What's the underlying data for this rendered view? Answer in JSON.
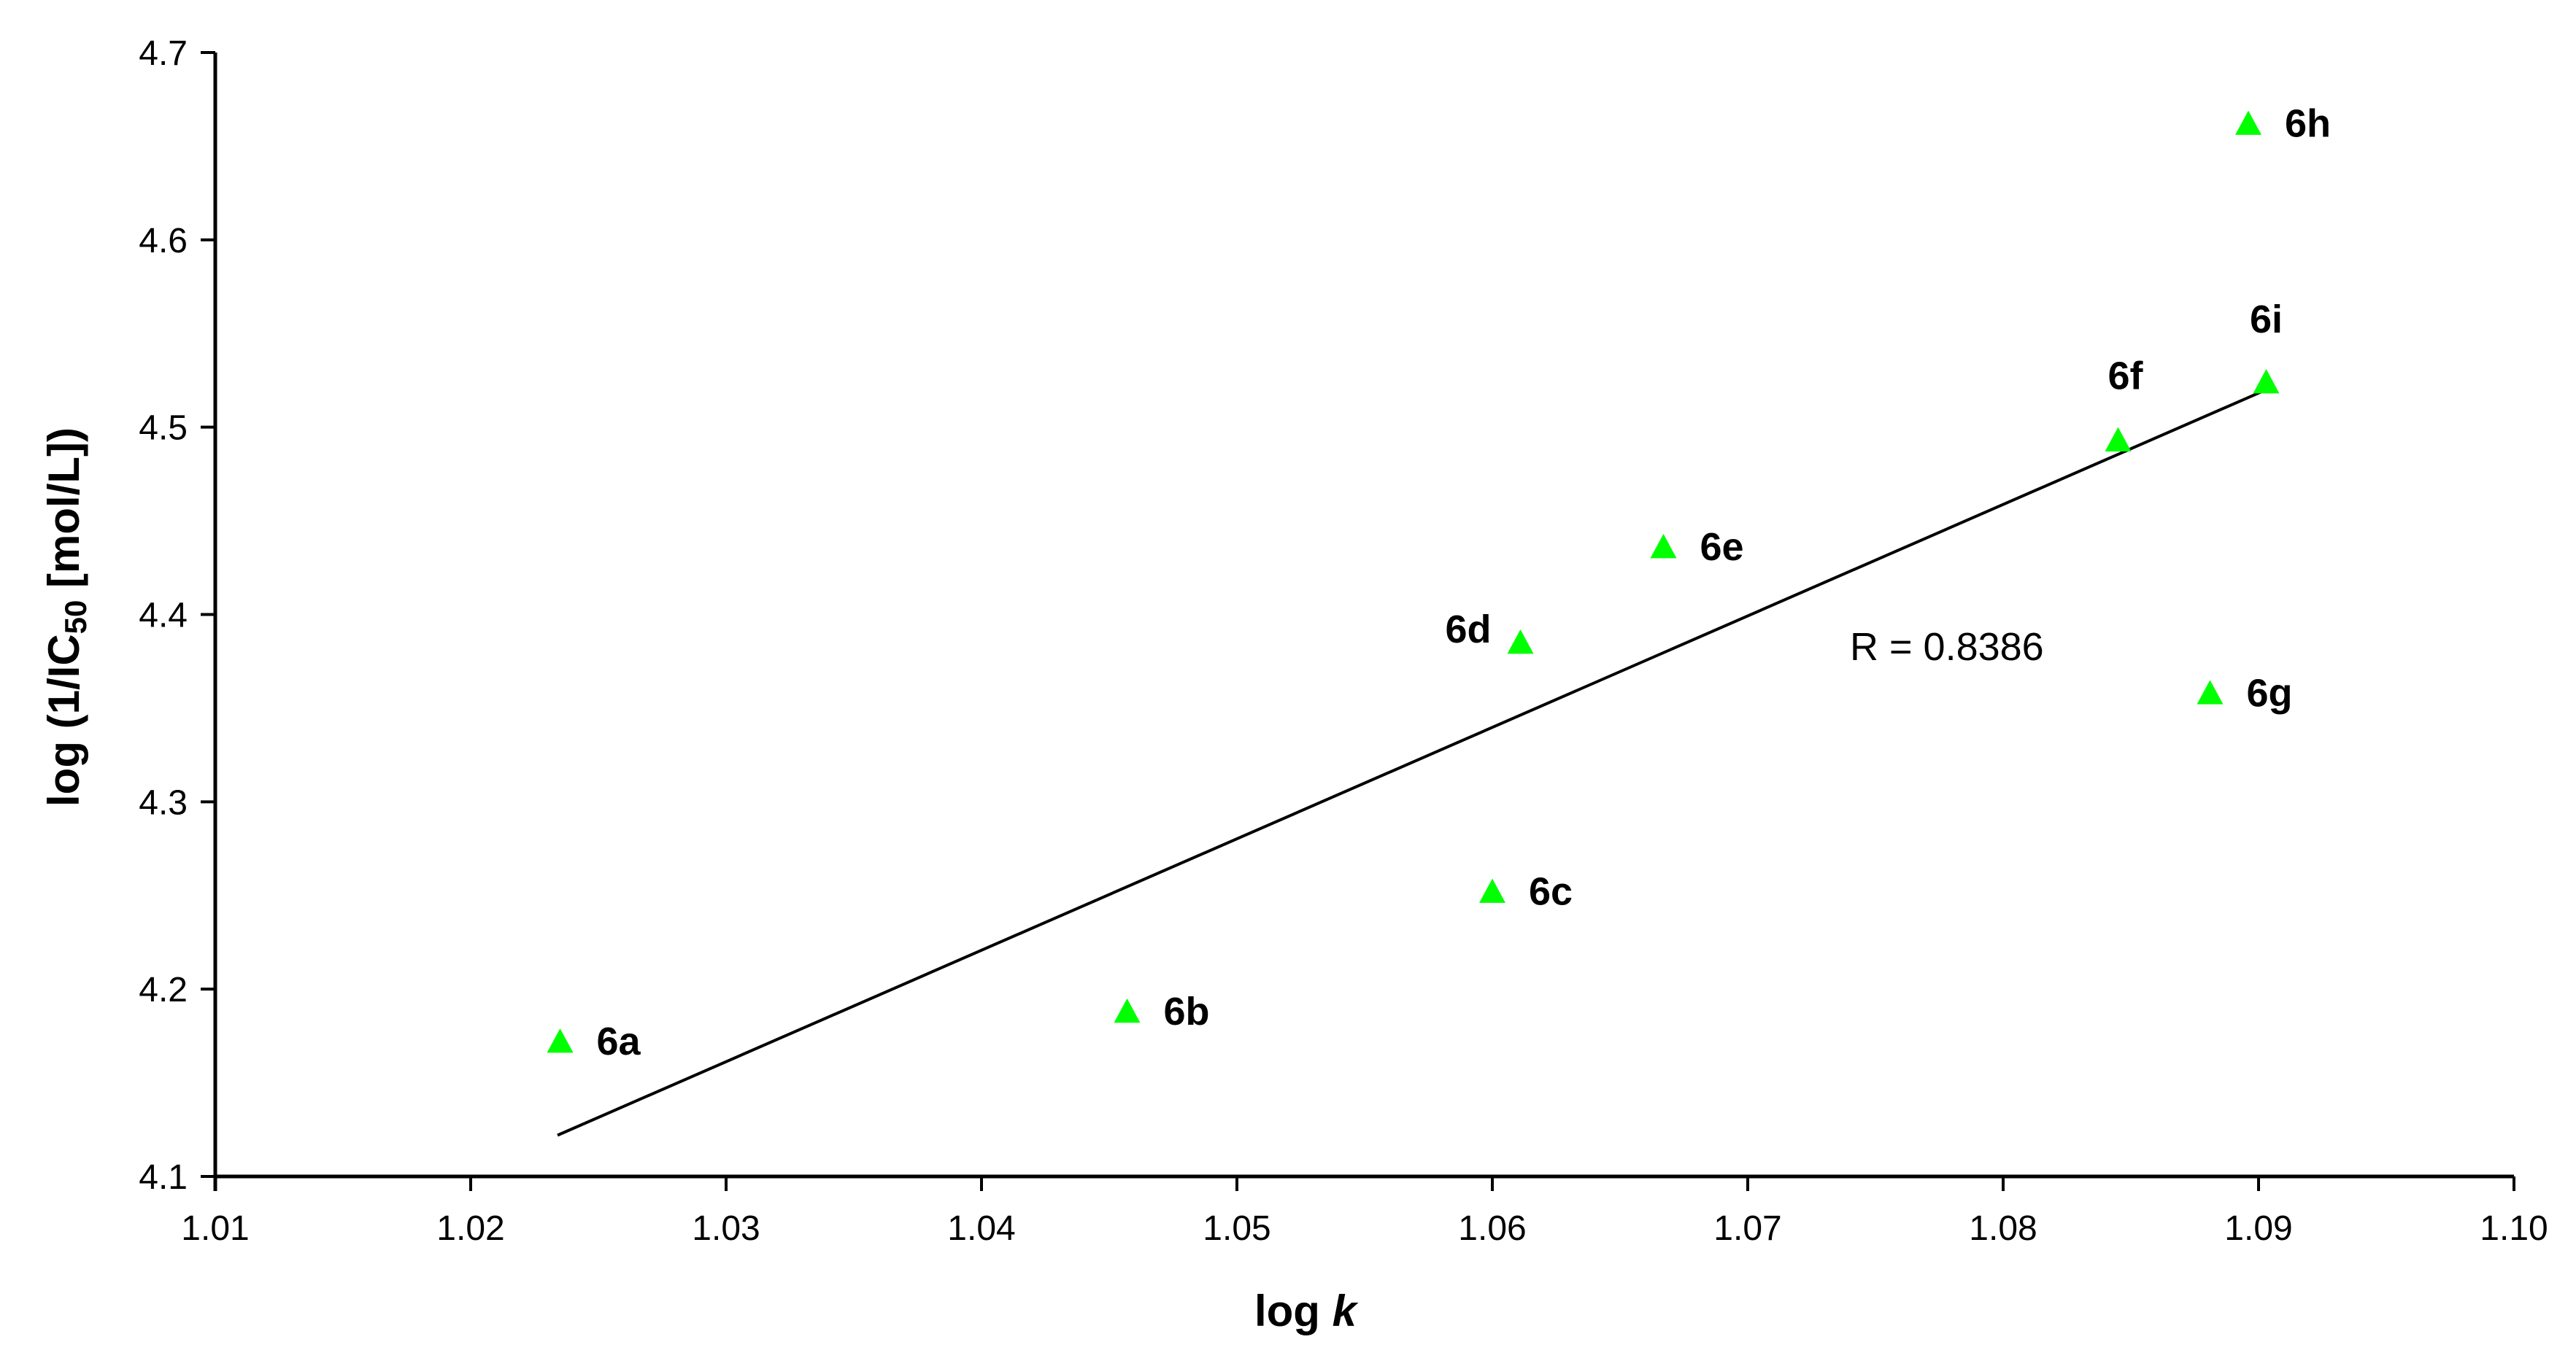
{
  "chart_data": {
    "type": "scatter",
    "title": "",
    "xlabel_prefix": "log ",
    "xlabel_italic": "k",
    "ylabel_prefix": "log (1/IC",
    "ylabel_sub": "50",
    "ylabel_suffix": " [mol/L])",
    "xlim": [
      1.01,
      1.1
    ],
    "ylim": [
      4.1,
      4.7
    ],
    "xticks": [
      "1.01",
      "1.02",
      "1.03",
      "1.04",
      "1.05",
      "1.06",
      "1.07",
      "1.08",
      "1.09",
      "1.10"
    ],
    "yticks": [
      "4.1",
      "4.2",
      "4.3",
      "4.4",
      "4.5",
      "4.6",
      "4.7"
    ],
    "grid": false,
    "marker_color": "#00ff00",
    "line_color": "#000000",
    "points": [
      {
        "label": "6a",
        "x": 1.0235,
        "y": 4.172
      },
      {
        "label": "6b",
        "x": 1.0457,
        "y": 4.188
      },
      {
        "label": "6c",
        "x": 1.06,
        "y": 4.252
      },
      {
        "label": "6d",
        "x": 1.0611,
        "y": 4.385
      },
      {
        "label": "6e",
        "x": 1.0667,
        "y": 4.436
      },
      {
        "label": "6f",
        "x": 1.0845,
        "y": 4.493
      },
      {
        "label": "6g",
        "x": 1.0881,
        "y": 4.358
      },
      {
        "label": "6h",
        "x": 1.0896,
        "y": 4.662
      },
      {
        "label": "6i",
        "x": 1.0903,
        "y": 4.524
      }
    ],
    "trendline": {
      "x": [
        1.0234,
        1.0903
      ],
      "y": [
        4.122,
        4.52
      ]
    },
    "annotation": "R = 0.8386"
  }
}
